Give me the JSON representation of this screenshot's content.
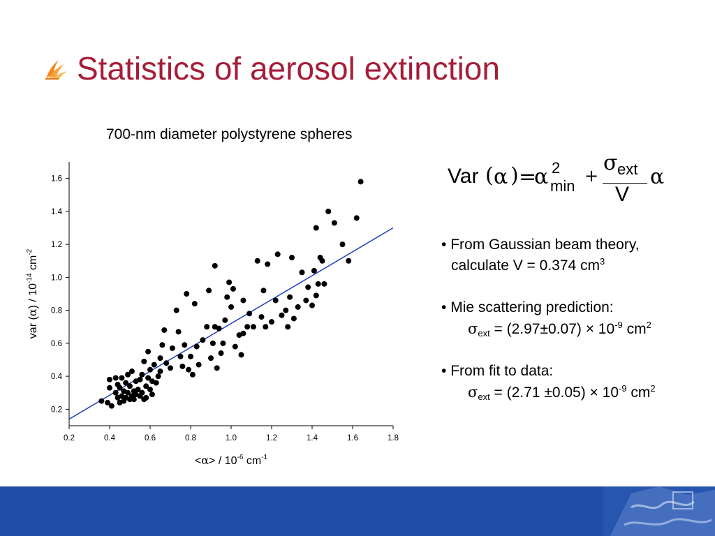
{
  "slide": {
    "title": "Statistics of aerosol extinction",
    "subtitle": "700-nm diameter polystyrene spheres",
    "accent_color": "#a61d38",
    "footer_color": "#1f4da8",
    "title_icon": "flame-bullet-icon",
    "footer_icon": "university-crest-icon"
  },
  "formula": {
    "var": "Var",
    "lparen": "(",
    "alpha": "α",
    "rparen": ")",
    "equals": "=",
    "alpha2": "α",
    "sup_2": "2",
    "sub_min": "min",
    "plus": "+",
    "sigma": "σ",
    "sub_ext": "ext",
    "denominator": "V",
    "alpha3": "α"
  },
  "notes": [
    {
      "bullet": "•",
      "line1": "From Gaussian beam theory,",
      "line2_pre": "calculate V = 0.374 cm",
      "line2_sup": "3"
    },
    {
      "bullet": "•",
      "line1": "Mie scattering prediction:",
      "sigma": "σ",
      "sub": "ext",
      "value_pre": " = (2.97±0.07) × 10",
      "exp": "-9",
      "unit": " cm",
      "unit_sup": "2"
    },
    {
      "bullet": "•",
      "line1": "From fit to data:",
      "sigma": "σ",
      "sub": "ext",
      "value_pre": " = (2.71 ±0.05) × 10",
      "exp": "-9",
      "unit": " cm",
      "unit_sup": "2"
    }
  ],
  "chart_data": {
    "type": "scatter",
    "xlim": [
      0.2,
      1.8
    ],
    "ylim": [
      0.1,
      1.7
    ],
    "x_ticks": [
      "0.2",
      "0.4",
      "0.6",
      "0.8",
      "1.0",
      "1.2",
      "1.4",
      "1.6",
      "1.8"
    ],
    "y_ticks": [
      "0.2",
      "0.4",
      "0.6",
      "0.8",
      "1.0",
      "1.2",
      "1.4",
      "1.6"
    ],
    "xlabel": {
      "pre": "<",
      "alpha": "α",
      "post": "> / 10",
      "exp": "-6",
      "unit": " cm",
      "unit_exp": "-1"
    },
    "ylabel": {
      "pre": "var (",
      "alpha": "α",
      "post": ") / 10",
      "exp": "-14",
      "unit": " cm",
      "unit_exp": "-2"
    },
    "marker_color": "#000000",
    "fit_color": "#1f3fbf",
    "fit_line": [
      [
        0.2,
        0.14
      ],
      [
        1.8,
        1.3
      ]
    ],
    "points": [
      [
        0.36,
        0.25
      ],
      [
        0.39,
        0.24
      ],
      [
        0.4,
        0.38
      ],
      [
        0.4,
        0.33
      ],
      [
        0.41,
        0.22
      ],
      [
        0.43,
        0.39
      ],
      [
        0.43,
        0.3
      ],
      [
        0.44,
        0.27
      ],
      [
        0.44,
        0.35
      ],
      [
        0.45,
        0.24
      ],
      [
        0.45,
        0.33
      ],
      [
        0.46,
        0.28
      ],
      [
        0.46,
        0.39
      ],
      [
        0.47,
        0.25
      ],
      [
        0.47,
        0.31
      ],
      [
        0.48,
        0.36
      ],
      [
        0.48,
        0.27
      ],
      [
        0.49,
        0.41
      ],
      [
        0.49,
        0.3
      ],
      [
        0.5,
        0.26
      ],
      [
        0.5,
        0.34
      ],
      [
        0.51,
        0.28
      ],
      [
        0.51,
        0.43
      ],
      [
        0.52,
        0.31
      ],
      [
        0.52,
        0.26
      ],
      [
        0.53,
        0.29
      ],
      [
        0.53,
        0.37
      ],
      [
        0.54,
        0.32
      ],
      [
        0.55,
        0.28
      ],
      [
        0.55,
        0.38
      ],
      [
        0.56,
        0.3
      ],
      [
        0.56,
        0.41
      ],
      [
        0.57,
        0.26
      ],
      [
        0.57,
        0.49
      ],
      [
        0.58,
        0.34
      ],
      [
        0.58,
        0.27
      ],
      [
        0.59,
        0.39
      ],
      [
        0.59,
        0.55
      ],
      [
        0.6,
        0.32
      ],
      [
        0.6,
        0.44
      ],
      [
        0.61,
        0.37
      ],
      [
        0.61,
        0.29
      ],
      [
        0.62,
        0.47
      ],
      [
        0.63,
        0.36
      ],
      [
        0.64,
        0.4
      ],
      [
        0.65,
        0.51
      ],
      [
        0.65,
        0.43
      ],
      [
        0.66,
        0.59
      ],
      [
        0.67,
        0.68
      ],
      [
        0.68,
        0.48
      ],
      [
        0.7,
        0.45
      ],
      [
        0.71,
        0.57
      ],
      [
        0.73,
        0.8
      ],
      [
        0.74,
        0.67
      ],
      [
        0.75,
        0.52
      ],
      [
        0.76,
        0.46
      ],
      [
        0.77,
        0.59
      ],
      [
        0.78,
        0.9
      ],
      [
        0.79,
        0.44
      ],
      [
        0.8,
        0.52
      ],
      [
        0.81,
        0.41
      ],
      [
        0.82,
        0.84
      ],
      [
        0.83,
        0.58
      ],
      [
        0.84,
        0.47
      ],
      [
        0.86,
        0.62
      ],
      [
        0.88,
        0.7
      ],
      [
        0.89,
        0.92
      ],
      [
        0.9,
        0.51
      ],
      [
        0.91,
        0.6
      ],
      [
        0.92,
        0.7
      ],
      [
        0.92,
        1.07
      ],
      [
        0.93,
        0.45
      ],
      [
        0.94,
        0.69
      ],
      [
        0.95,
        0.54
      ],
      [
        0.96,
        0.6
      ],
      [
        0.97,
        0.74
      ],
      [
        0.98,
        0.88
      ],
      [
        0.99,
        0.97
      ],
      [
        1.0,
        0.82
      ],
      [
        1.01,
        0.93
      ],
      [
        1.02,
        0.58
      ],
      [
        1.04,
        0.65
      ],
      [
        1.05,
        0.53
      ],
      [
        1.06,
        0.66
      ],
      [
        1.06,
        0.86
      ],
      [
        1.08,
        0.7
      ],
      [
        1.09,
        0.78
      ],
      [
        1.11,
        0.7
      ],
      [
        1.13,
        1.1
      ],
      [
        1.15,
        0.76
      ],
      [
        1.16,
        0.92
      ],
      [
        1.17,
        0.7
      ],
      [
        1.18,
        1.08
      ],
      [
        1.2,
        0.73
      ],
      [
        1.22,
        0.86
      ],
      [
        1.23,
        1.14
      ],
      [
        1.25,
        0.77
      ],
      [
        1.27,
        0.8
      ],
      [
        1.28,
        0.7
      ],
      [
        1.29,
        0.88
      ],
      [
        1.3,
        1.12
      ],
      [
        1.31,
        0.75
      ],
      [
        1.33,
        0.82
      ],
      [
        1.35,
        1.03
      ],
      [
        1.37,
        0.86
      ],
      [
        1.38,
        0.94
      ],
      [
        1.4,
        0.83
      ],
      [
        1.41,
        1.04
      ],
      [
        1.42,
        0.89
      ],
      [
        1.43,
        0.96
      ],
      [
        1.44,
        1.12
      ],
      [
        1.45,
        1.1
      ],
      [
        1.46,
        0.96
      ],
      [
        1.48,
        1.4
      ],
      [
        1.51,
        1.33
      ],
      [
        1.55,
        1.2
      ],
      [
        1.58,
        1.1
      ],
      [
        1.62,
        1.36
      ],
      [
        1.64,
        1.58
      ],
      [
        1.42,
        1.3
      ]
    ]
  }
}
